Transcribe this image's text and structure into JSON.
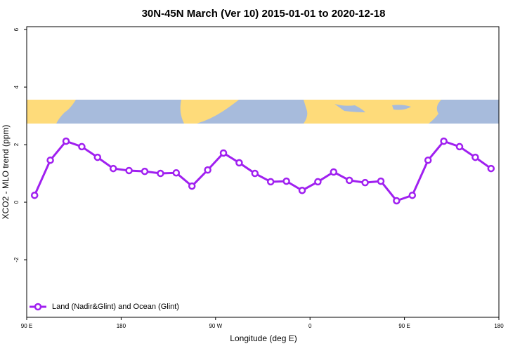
{
  "chart_data": {
    "type": "line",
    "title": "30N-45N March (Ver 10)   2015-01-01 to 2020-12-18",
    "xlabel": "Longitude (deg E)",
    "ylabel": "XCO2 - MLO trend (ppm)",
    "x": [
      97.5,
      112.5,
      127.5,
      142.5,
      157.5,
      172.5,
      187.5,
      202.5,
      217.5,
      232.5,
      247.5,
      262.5,
      277.5,
      292.5,
      307.5,
      322.5,
      337.5,
      352.5,
      367.5,
      382.5,
      397.5,
      412.5,
      427.5,
      442.5,
      457.5,
      472.5,
      487.5,
      502.5,
      517.5,
      532.5
    ],
    "series": [
      {
        "name": "Land (Nadir&Glint) and Ocean (Glint)",
        "color": "#a020f0",
        "values": [
          0.24,
          1.46,
          2.12,
          1.93,
          1.56,
          1.17,
          1.1,
          1.07,
          1.0,
          1.02,
          0.56,
          1.12,
          1.71,
          1.37,
          1.0,
          0.71,
          0.73,
          0.41,
          0.71,
          1.05,
          0.76,
          0.68,
          0.73,
          0.05,
          0.24,
          1.46,
          2.12,
          1.93,
          1.56,
          1.17
        ]
      }
    ],
    "xlim": [
      90,
      540
    ],
    "xticks": [
      {
        "value": 90,
        "label": "90 E"
      },
      180,
      {
        "value": 270,
        "label": "90 W"
      },
      {
        "value": 360,
        "label": "0"
      },
      {
        "value": 450,
        "label": "90 E"
      },
      {
        "value": 540,
        "label": "180"
      }
    ],
    "ylim": [
      -4,
      6.1
    ],
    "yticks": [
      -2,
      0,
      2,
      4,
      6
    ],
    "legend": "bottom-left"
  }
}
